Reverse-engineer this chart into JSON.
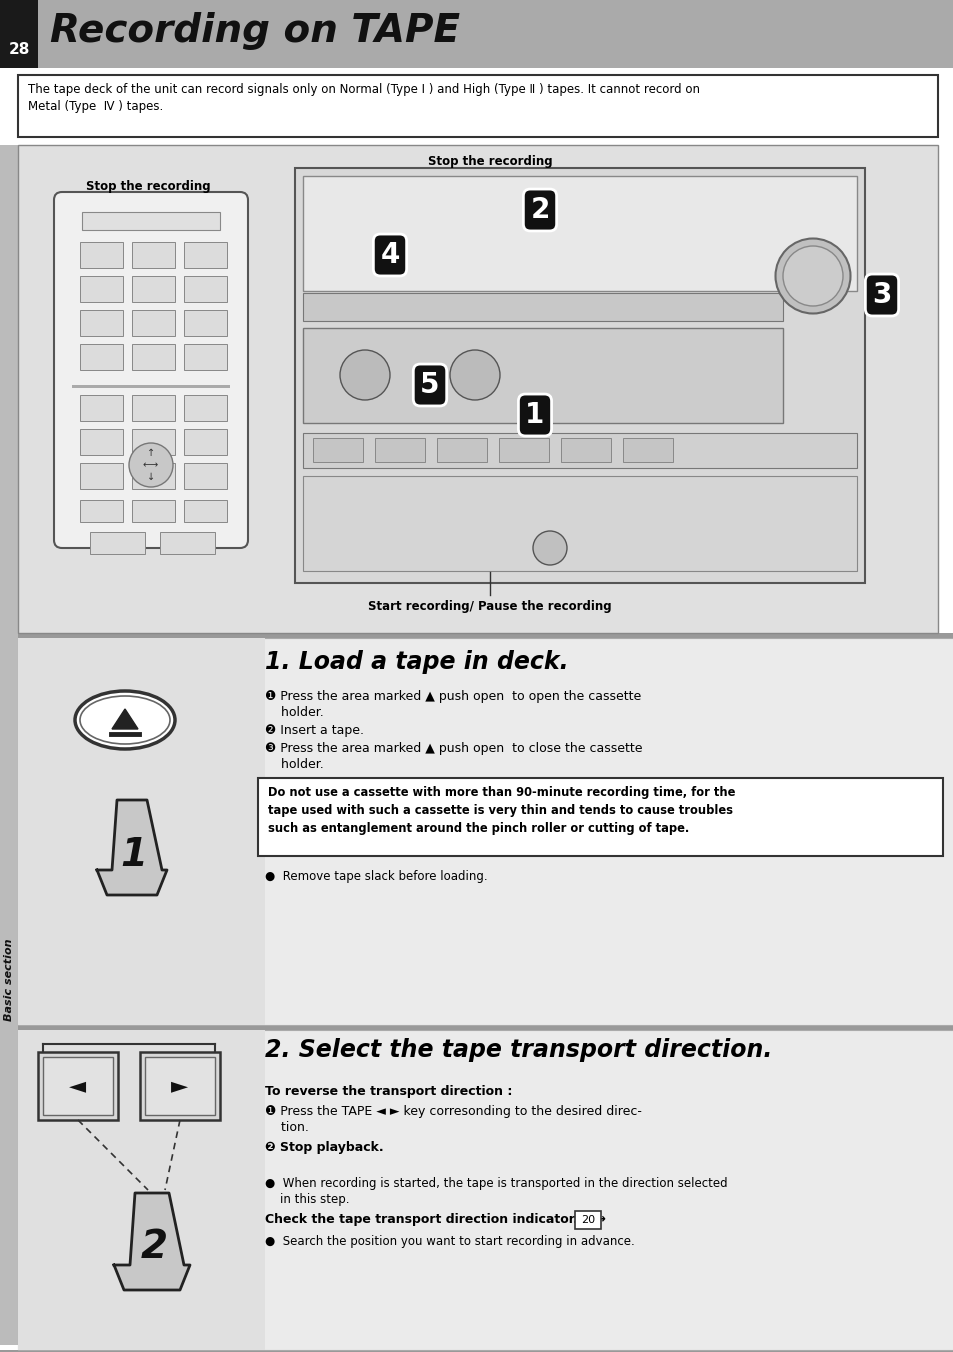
{
  "page_number": "28",
  "title": "Recording on TAPE",
  "header_bg": "#aaaaaa",
  "page_bg": "#ffffff",
  "diagram_bg": "#e0e0e0",
  "step_bg": "#ebebeb",
  "sidebar_bg": "#bbbbbb",
  "sidebar_text": "Basic section",
  "notice_text_line1": "The tape deck of the unit can record signals only on Normal (Type Ⅰ ) and High (Type Ⅱ ) tapes. It cannot record on",
  "notice_text_line2": "Metal (Type  Ⅳ ) tapes.",
  "diagram_label_stop_top": "Stop the recording",
  "diagram_label_stop_left": "Stop the recording",
  "diagram_label_start": "Start recording/ Pause the recording",
  "step1_title": "1. Load a tape in deck.",
  "step1_b1a": "❶ Press the area marked ▲ push open  to open the cassette",
  "step1_b1b": "    holder.",
  "step1_b2": "❷ Insert a tape.",
  "step1_b3a": "❸ Press the area marked ▲ push open  to close the cassette",
  "step1_b3b": "    holder.",
  "step1_warning": "Do not use a cassette with more than 90-minute recording time, for the\ntape used with such a cassette is very thin and tends to cause troubles\nsuch as entanglement around the pinch roller or cutting of tape.",
  "step1_note": "●  Remove tape slack before loading.",
  "step2_title": "2. Select the tape transport direction.",
  "step2_sub": "To reverse the transport direction :",
  "step2_b1a": "❶ Press the TAPE ◄ ► key corresonding to the desired direc-",
  "step2_b1b": "    tion.",
  "step2_b2": "❷ Stop playback.",
  "step2_note1": "●  When recording is started, the tape is transported in the direction selected",
  "step2_note1b": "    in this step.",
  "step2_note2": "Check the tape transport direction indicator.    →",
  "step2_note2_ref": "20",
  "step2_note3": "●  Search the position you want to start recording in advance.",
  "sep_color": "#999999",
  "border_color": "#000000",
  "text_color": "#000000"
}
